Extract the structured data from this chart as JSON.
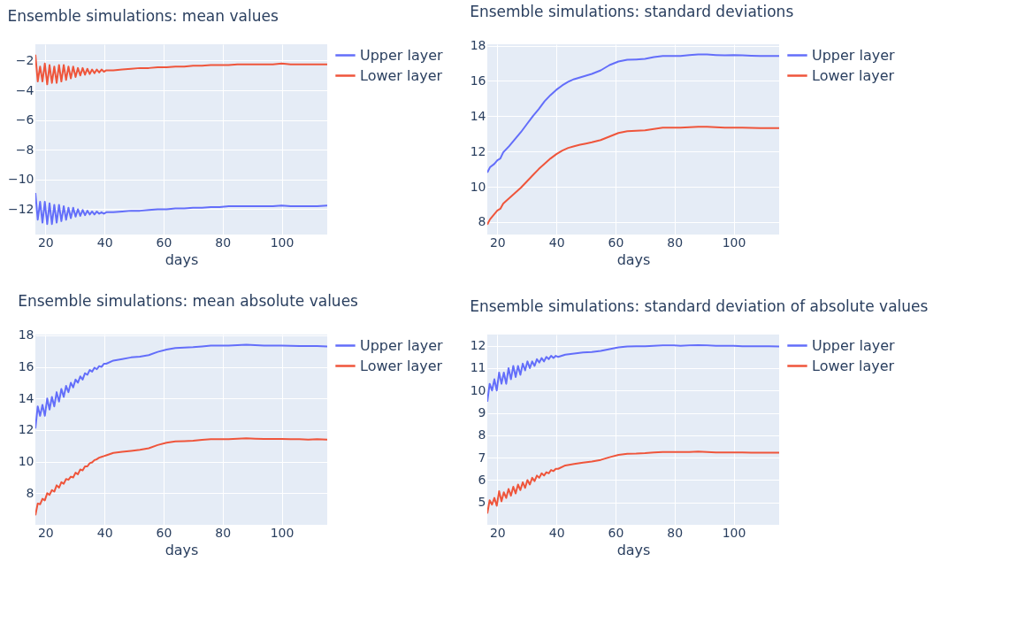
{
  "chart_data": [
    {
      "type": "line",
      "title": "Ensemble simulations: mean values",
      "xlabel": "days",
      "xlim": [
        16.6,
        115.4
      ],
      "xticks": [
        20,
        40,
        60,
        80,
        100
      ],
      "ylim": [
        -13.7,
        -0.9
      ],
      "yticks": [
        -12,
        -10,
        -8,
        -6,
        -4,
        -2
      ],
      "grid": true,
      "legend": "top right",
      "x": [
        16.6,
        17.4,
        18.2,
        19.0,
        19.8,
        20.6,
        21.4,
        22.2,
        23.0,
        23.8,
        24.6,
        25.4,
        26.2,
        27.0,
        27.8,
        28.6,
        29.4,
        30.2,
        31.0,
        31.8,
        32.6,
        33.4,
        34.2,
        35.0,
        35.8,
        36.6,
        37.4,
        38.2,
        39.0,
        39.8,
        40.6,
        43,
        46,
        49,
        52,
        55,
        58,
        61,
        64,
        67,
        70,
        73,
        76,
        79,
        82,
        85,
        88,
        91,
        94,
        97,
        100,
        103,
        106,
        109,
        112,
        115.4
      ],
      "series": [
        {
          "name": "Upper layer",
          "color": "#636efa",
          "values": [
            -10.9,
            -12.7,
            -11.5,
            -12.9,
            -11.5,
            -13.0,
            -11.6,
            -13.0,
            -11.7,
            -12.9,
            -11.7,
            -12.8,
            -11.8,
            -12.7,
            -11.9,
            -12.6,
            -11.9,
            -12.5,
            -12.0,
            -12.45,
            -12.05,
            -12.4,
            -12.1,
            -12.35,
            -12.15,
            -12.35,
            -12.15,
            -12.3,
            -12.2,
            -12.3,
            -12.2,
            -12.2,
            -12.15,
            -12.1,
            -12.1,
            -12.05,
            -12.0,
            -12.0,
            -11.95,
            -11.95,
            -11.9,
            -11.9,
            -11.85,
            -11.85,
            -11.8,
            -11.8,
            -11.8,
            -11.8,
            -11.8,
            -11.8,
            -11.75,
            -11.8,
            -11.8,
            -11.8,
            -11.8,
            -11.75
          ]
        },
        {
          "name": "Lower layer",
          "color": "#ef553b",
          "values": [
            -1.6,
            -3.4,
            -2.4,
            -3.4,
            -2.2,
            -3.6,
            -2.3,
            -3.5,
            -2.4,
            -3.5,
            -2.3,
            -3.4,
            -2.3,
            -3.3,
            -2.4,
            -3.2,
            -2.4,
            -3.1,
            -2.5,
            -3.0,
            -2.5,
            -2.95,
            -2.55,
            -2.9,
            -2.6,
            -2.85,
            -2.6,
            -2.8,
            -2.6,
            -2.75,
            -2.65,
            -2.65,
            -2.6,
            -2.55,
            -2.5,
            -2.5,
            -2.45,
            -2.45,
            -2.4,
            -2.4,
            -2.35,
            -2.35,
            -2.3,
            -2.3,
            -2.3,
            -2.25,
            -2.25,
            -2.25,
            -2.25,
            -2.25,
            -2.2,
            -2.25,
            -2.25,
            -2.25,
            -2.25,
            -2.25
          ]
        }
      ]
    },
    {
      "type": "line",
      "title": "Ensemble simulations: standard deviations",
      "xlabel": "days",
      "xlim": [
        16.6,
        115.4
      ],
      "xticks": [
        20,
        40,
        60,
        80,
        100
      ],
      "ylim": [
        7.29,
        18.08
      ],
      "yticks": [
        8,
        10,
        12,
        14,
        16,
        18
      ],
      "grid": true,
      "legend": "top right",
      "x": [
        16.6,
        17.5,
        19,
        20,
        21,
        22,
        24,
        26,
        28,
        30,
        32,
        34,
        36,
        38,
        40,
        42,
        44,
        46,
        48,
        50,
        52,
        55,
        58,
        61,
        64,
        67,
        70,
        73,
        76,
        79,
        82,
        85,
        88,
        91,
        94,
        97,
        100,
        103,
        106,
        109,
        112,
        115.4
      ],
      "series": [
        {
          "name": "Upper layer",
          "color": "#636efa",
          "values": [
            10.8,
            11.1,
            11.3,
            11.5,
            11.6,
            11.95,
            12.3,
            12.7,
            13.1,
            13.55,
            14.0,
            14.4,
            14.85,
            15.2,
            15.5,
            15.75,
            15.95,
            16.1,
            16.2,
            16.3,
            16.4,
            16.6,
            16.9,
            17.1,
            17.2,
            17.22,
            17.25,
            17.35,
            17.42,
            17.42,
            17.42,
            17.46,
            17.5,
            17.5,
            17.47,
            17.45,
            17.46,
            17.45,
            17.43,
            17.42,
            17.42,
            17.42
          ]
        },
        {
          "name": "Lower layer",
          "color": "#ef553b",
          "values": [
            7.85,
            8.15,
            8.45,
            8.65,
            8.75,
            9.05,
            9.35,
            9.65,
            9.95,
            10.3,
            10.65,
            11.0,
            11.3,
            11.6,
            11.85,
            12.05,
            12.2,
            12.3,
            12.38,
            12.45,
            12.52,
            12.65,
            12.85,
            13.05,
            13.15,
            13.18,
            13.2,
            13.28,
            13.35,
            13.35,
            13.35,
            13.38,
            13.4,
            13.4,
            13.38,
            13.35,
            13.35,
            13.35,
            13.34,
            13.33,
            13.33,
            13.33
          ]
        }
      ]
    },
    {
      "type": "line",
      "title": "Ensemble simulations: mean absolute values",
      "xlabel": "days",
      "xlim": [
        16.6,
        115.4
      ],
      "xticks": [
        20,
        40,
        60,
        80,
        100
      ],
      "ylim": [
        6.0,
        18.05
      ],
      "yticks": [
        8,
        10,
        12,
        14,
        16,
        18
      ],
      "grid": true,
      "legend": "top right",
      "x": [
        16.6,
        17.4,
        18.2,
        19.0,
        19.8,
        20.6,
        21.4,
        22.2,
        23.0,
        23.8,
        24.6,
        25.4,
        26.2,
        27.0,
        27.8,
        28.6,
        29.4,
        30.2,
        31.0,
        31.8,
        32.6,
        33.4,
        34.2,
        35.0,
        35.8,
        36.6,
        37.4,
        38.2,
        39.0,
        39.8,
        40.6,
        43,
        46,
        49,
        52,
        55,
        58,
        61,
        64,
        67,
        70,
        73,
        76,
        79,
        82,
        85,
        88,
        91,
        94,
        97,
        100,
        103,
        106,
        109,
        112,
        115.4
      ],
      "series": [
        {
          "name": "Upper layer",
          "color": "#636efa",
          "values": [
            12.1,
            13.5,
            12.9,
            13.6,
            12.9,
            14.0,
            13.3,
            14.1,
            13.5,
            14.4,
            13.8,
            14.6,
            14.1,
            14.8,
            14.4,
            15.0,
            14.7,
            15.2,
            15.0,
            15.4,
            15.2,
            15.6,
            15.5,
            15.8,
            15.7,
            15.95,
            15.85,
            16.05,
            16.0,
            16.2,
            16.2,
            16.4,
            16.5,
            16.6,
            16.65,
            16.75,
            16.95,
            17.1,
            17.2,
            17.22,
            17.25,
            17.3,
            17.35,
            17.35,
            17.35,
            17.38,
            17.4,
            17.38,
            17.35,
            17.35,
            17.35,
            17.33,
            17.32,
            17.32,
            17.32,
            17.3
          ]
        },
        {
          "name": "Lower layer",
          "color": "#ef553b",
          "values": [
            6.6,
            7.35,
            7.3,
            7.65,
            7.55,
            8.0,
            7.9,
            8.2,
            8.1,
            8.5,
            8.35,
            8.7,
            8.6,
            8.9,
            8.85,
            9.05,
            9.0,
            9.3,
            9.2,
            9.5,
            9.45,
            9.7,
            9.7,
            9.9,
            9.95,
            10.1,
            10.15,
            10.25,
            10.3,
            10.35,
            10.4,
            10.55,
            10.62,
            10.68,
            10.75,
            10.85,
            11.05,
            11.2,
            11.28,
            11.3,
            11.32,
            11.38,
            11.42,
            11.42,
            11.42,
            11.45,
            11.48,
            11.45,
            11.43,
            11.43,
            11.43,
            11.42,
            11.42,
            11.4,
            11.42,
            11.4
          ]
        }
      ]
    },
    {
      "type": "line",
      "title": "Ensemble simulations: standard deviation of absolute values",
      "xlabel": "days",
      "xlim": [
        16.6,
        115.4
      ],
      "xticks": [
        20,
        40,
        60,
        80,
        100
      ],
      "ylim": [
        4.0,
        12.5
      ],
      "yticks": [
        5,
        6,
        7,
        8,
        9,
        10,
        11,
        12
      ],
      "grid": true,
      "legend": "top right",
      "x": [
        16.6,
        17.4,
        18.2,
        19.0,
        19.8,
        20.6,
        21.4,
        22.2,
        23.0,
        23.8,
        24.6,
        25.4,
        26.2,
        27.0,
        27.8,
        28.6,
        29.4,
        30.2,
        31.0,
        31.8,
        32.6,
        33.4,
        34.2,
        35.0,
        35.8,
        36.6,
        37.4,
        38.2,
        39.0,
        39.8,
        40.6,
        43,
        46,
        49,
        52,
        55,
        58,
        61,
        64,
        67,
        70,
        73,
        76,
        79,
        82,
        85,
        88,
        91,
        94,
        97,
        100,
        103,
        106,
        109,
        112,
        115.4
      ],
      "series": [
        {
          "name": "Upper layer",
          "color": "#636efa",
          "values": [
            9.5,
            10.3,
            10.0,
            10.5,
            10.0,
            10.8,
            10.3,
            10.8,
            10.3,
            11.0,
            10.5,
            11.1,
            10.6,
            11.1,
            10.7,
            11.2,
            10.9,
            11.3,
            11.0,
            11.3,
            11.1,
            11.4,
            11.25,
            11.45,
            11.3,
            11.5,
            11.4,
            11.55,
            11.45,
            11.55,
            11.5,
            11.6,
            11.65,
            11.7,
            11.72,
            11.77,
            11.85,
            11.93,
            11.97,
            11.98,
            11.98,
            12.0,
            12.02,
            12.02,
            12.0,
            12.02,
            12.03,
            12.02,
            12.0,
            12.0,
            12.0,
            11.98,
            11.98,
            11.98,
            11.98,
            11.97
          ]
        },
        {
          "name": "Lower layer",
          "color": "#ef553b",
          "values": [
            4.5,
            5.1,
            4.9,
            5.2,
            4.85,
            5.5,
            5.05,
            5.45,
            5.2,
            5.6,
            5.3,
            5.7,
            5.4,
            5.8,
            5.55,
            5.9,
            5.65,
            6.0,
            5.8,
            6.1,
            5.95,
            6.2,
            6.1,
            6.3,
            6.2,
            6.35,
            6.3,
            6.45,
            6.4,
            6.5,
            6.5,
            6.65,
            6.72,
            6.78,
            6.83,
            6.9,
            7.02,
            7.12,
            7.17,
            7.18,
            7.2,
            7.23,
            7.25,
            7.25,
            7.25,
            7.25,
            7.27,
            7.25,
            7.23,
            7.23,
            7.23,
            7.23,
            7.22,
            7.22,
            7.22,
            7.22
          ]
        }
      ]
    }
  ]
}
